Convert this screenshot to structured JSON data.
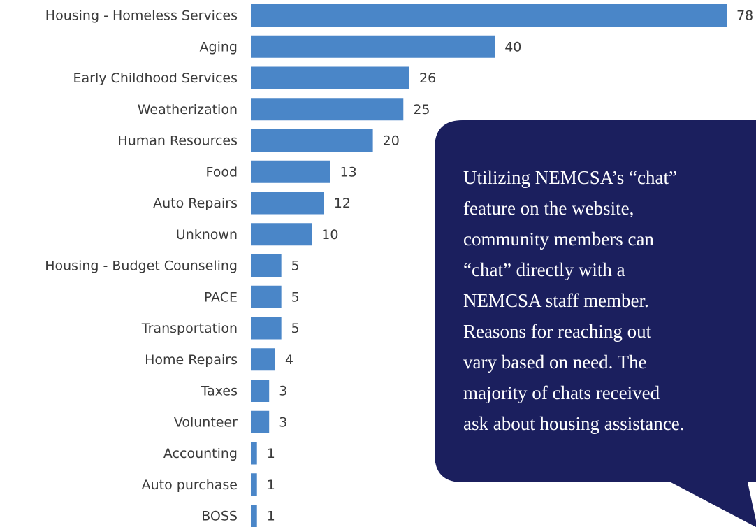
{
  "chart_data": {
    "type": "bar",
    "orientation": "horizontal",
    "categories": [
      "Housing - Homeless Services",
      "Aging",
      "Early Childhood Services",
      "Weatherization",
      "Human Resources",
      "Food",
      "Auto Repairs",
      "Unknown",
      "Housing - Budget Counseling",
      "PACE",
      "Transportation",
      "Home Repairs",
      "Taxes",
      "Volunteer",
      "Accounting",
      "Auto purchase",
      "BOSS"
    ],
    "values": [
      78,
      40,
      26,
      25,
      20,
      13,
      12,
      10,
      5,
      5,
      5,
      4,
      3,
      3,
      1,
      1,
      1
    ],
    "color": "#4a86c8",
    "annotation": [
      "Utilizing NEMCSA’s “chat”",
      "feature on the website,",
      "community members can",
      "“chat” directly with a",
      "NEMCSA staff member.",
      "Reasons for reaching out",
      "vary based on need. The",
      "majority of chats received",
      "ask about housing assistance."
    ]
  }
}
